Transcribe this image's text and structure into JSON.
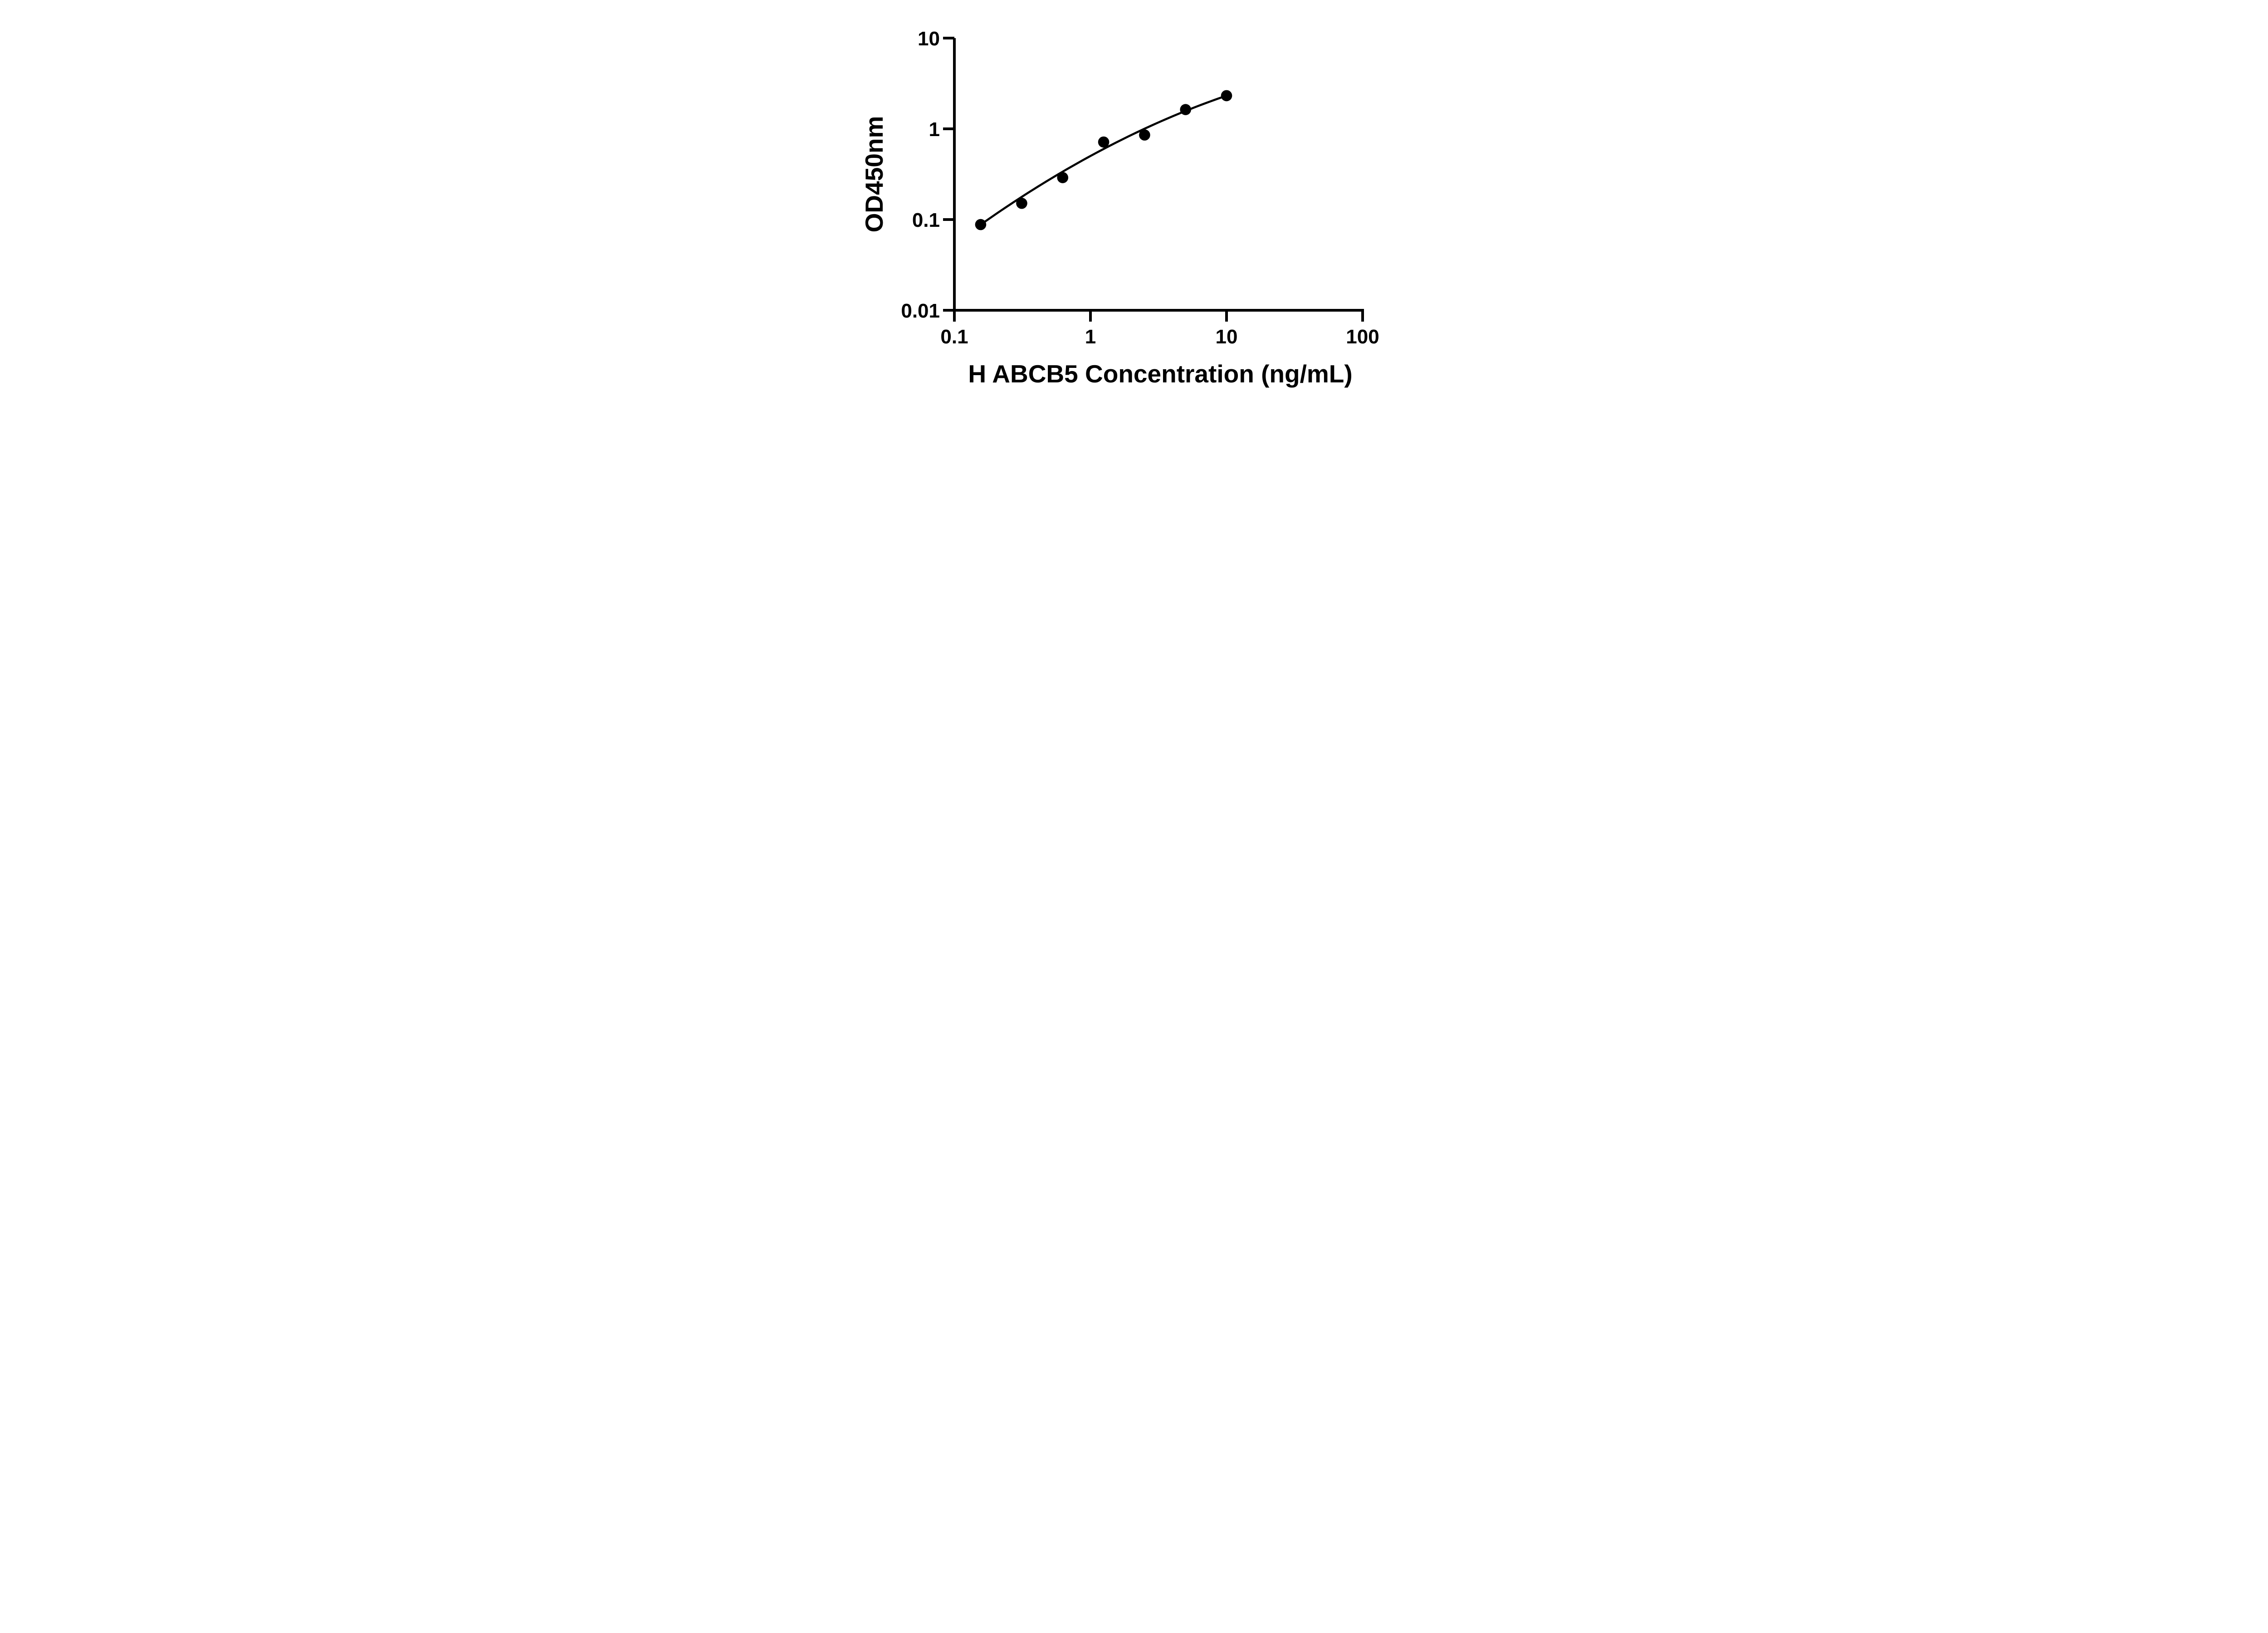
{
  "chart_data": {
    "type": "scatter",
    "title": "",
    "xlabel": "H ABCB5 Concentration (ng/mL)",
    "ylabel": "OD450nm",
    "x_scale": "log10",
    "y_scale": "log10",
    "xlim": [
      0.1,
      100
    ],
    "ylim": [
      0.01,
      10
    ],
    "x_tick_labels": [
      "0.1",
      "1",
      "10",
      "100"
    ],
    "x_tick_values": [
      0.1,
      1,
      10,
      100
    ],
    "y_tick_labels": [
      "10",
      "1",
      "0.1",
      "0.01"
    ],
    "y_tick_values": [
      10,
      1,
      0.1,
      0.01
    ],
    "grid": false,
    "legend": "none",
    "marker": {
      "shape": "circle",
      "color": "#000000"
    },
    "points": [
      {
        "x": 0.156,
        "y": 0.088
      },
      {
        "x": 0.3125,
        "y": 0.151
      },
      {
        "x": 0.625,
        "y": 0.29
      },
      {
        "x": 1.25,
        "y": 0.715
      },
      {
        "x": 2.5,
        "y": 0.855
      },
      {
        "x": 5,
        "y": 1.63
      },
      {
        "x": 10,
        "y": 2.32
      }
    ],
    "fit_curve": {
      "model": "quadratic_in_loglog",
      "equation": "log10(y) = a + b*log10(x) + c*log10(x)^2",
      "a": -0.2995,
      "b": 0.816,
      "c": -0.151,
      "x_start": 0.156,
      "x_end": 10,
      "color": "#000000"
    },
    "ink_color": "#000000",
    "background_color": "#ffffff"
  }
}
